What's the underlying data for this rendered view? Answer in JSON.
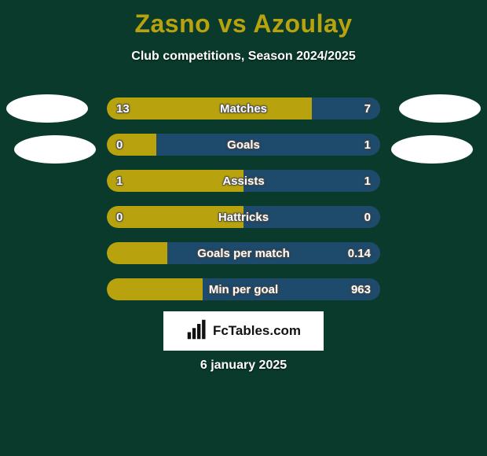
{
  "colors": {
    "background": "#0a3a2b",
    "title": "#b8a30f",
    "subtitle_text": "#ffffff",
    "left_fill": "#b8a30f",
    "right_fill": "#1e4a6b",
    "row_track": "#2a5a49",
    "avatar_fill": "#ffffff",
    "logo_bg": "#ffffff",
    "logo_text": "#111111",
    "date_text": "#ffffff"
  },
  "title_parts": {
    "left": "Zasno",
    "vs": "vs",
    "right": "Azoulay"
  },
  "subtitle": "Club competitions, Season 2024/2025",
  "rows": [
    {
      "label": "Matches",
      "left_val": "13",
      "right_val": "7",
      "left_pct": 75,
      "right_pct": 25
    },
    {
      "label": "Goals",
      "left_val": "0",
      "right_val": "1",
      "left_pct": 18,
      "right_pct": 82
    },
    {
      "label": "Assists",
      "left_val": "1",
      "right_val": "1",
      "left_pct": 50,
      "right_pct": 50
    },
    {
      "label": "Hattricks",
      "left_val": "0",
      "right_val": "0",
      "left_pct": 50,
      "right_pct": 50
    },
    {
      "label": "Goals per match",
      "left_val": "",
      "right_val": "0.14",
      "left_pct": 22,
      "right_pct": 78
    },
    {
      "label": "Min per goal",
      "left_val": "",
      "right_val": "963",
      "left_pct": 35,
      "right_pct": 65
    }
  ],
  "logo_text": "FcTables.com",
  "date_text": "6 january 2025",
  "fonts": {
    "title_size": 32,
    "subtitle_size": 16,
    "row_size": 15,
    "date_size": 16
  }
}
